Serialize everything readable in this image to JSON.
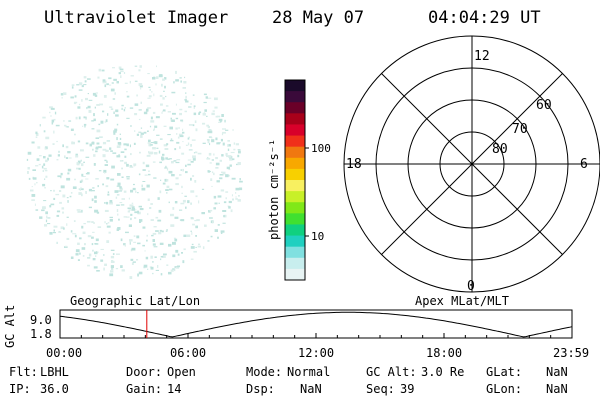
{
  "header": {
    "instrument": "Ultraviolet Imager",
    "date": "28 May 07",
    "time": "04:04:29 UT"
  },
  "colorbar": {
    "unit_label": "photon cm⁻²s⁻¹",
    "tick_labels": [
      "100",
      "10"
    ],
    "colors_top_to_bottom": [
      "#1a0a2a",
      "#3a0a3a",
      "#6a0028",
      "#a8001a",
      "#d8002a",
      "#f0301a",
      "#f07810",
      "#f8a800",
      "#f8d000",
      "#f8f060",
      "#c8f028",
      "#80e818",
      "#40e030",
      "#10d080",
      "#20d0c0",
      "#80e0e0",
      "#c8eeee",
      "#e8f4f4"
    ],
    "scale": "log"
  },
  "polar_plot": {
    "mlt_labels": {
      "top": "12",
      "left": "18",
      "right": "6",
      "bottom": "0"
    },
    "lat_labels": [
      "80",
      "70",
      "60"
    ]
  },
  "timeline": {
    "y_axis_label": "GC Alt",
    "y_max": "9.0",
    "y_min": "1.8",
    "left_title": "Geographic Lat/Lon",
    "right_title": "Apex MLat/MLT",
    "x_ticks": [
      "00:00",
      "06:00",
      "12:00",
      "18:00",
      "23:59"
    ],
    "current_marker_time": "04:04",
    "marker_color": "#e00000"
  },
  "status": {
    "row1": [
      {
        "label": "Flt:",
        "value": "LBHL"
      },
      {
        "label": "Door:",
        "value": "Open"
      },
      {
        "label": "Mode:",
        "value": "Normal"
      },
      {
        "label": "GC Alt:",
        "value": "3.0 Re"
      },
      {
        "label": "GLat:",
        "value": "NaN"
      }
    ],
    "row2": [
      {
        "label": "IP:",
        "value": "36.0"
      },
      {
        "label": "Gain:",
        "value": "14"
      },
      {
        "label": "Dsp:",
        "value": "NaN"
      },
      {
        "label": "Seq:",
        "value": "39"
      },
      {
        "label": "GLon:",
        "value": "NaN"
      }
    ]
  },
  "colors": {
    "speckle": "#bfe3de",
    "speckle_light": "#dcefec"
  }
}
